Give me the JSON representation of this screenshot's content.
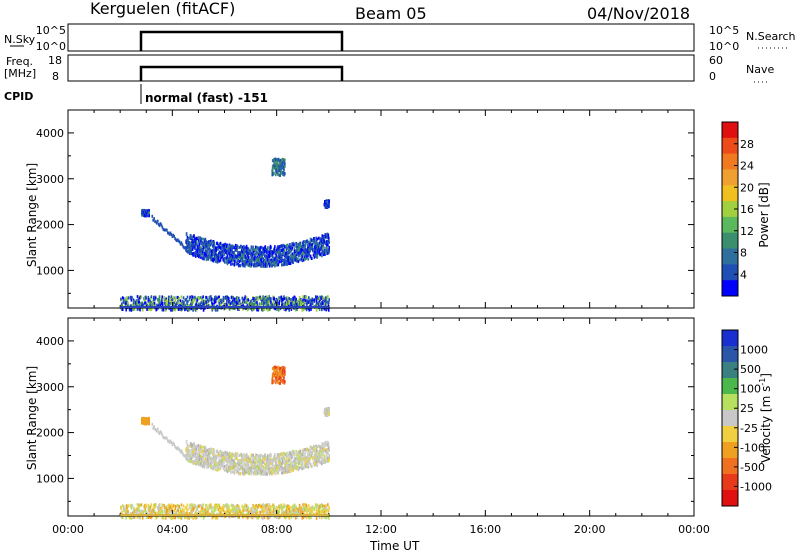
{
  "header": {
    "station": "Kerguelen (fitACF)",
    "beam": "Beam 05",
    "date": "04/Nov/2018"
  },
  "panels": {
    "nsky": {
      "left_label": "N.Sky",
      "left_ticks": [
        "10^5",
        "10^0"
      ],
      "right_ticks": [
        "10^5",
        "10^0"
      ],
      "right_label": "N.Search"
    },
    "freq": {
      "left_label_line1": "Freq.",
      "left_label_line2": "[MHz]",
      "left_ticks": [
        "18",
        "8"
      ],
      "right_ticks": [
        "60",
        "0"
      ],
      "right_label": "Nave"
    },
    "cpid": {
      "label": "CPID",
      "program": "normal (fast) -151"
    }
  },
  "chart_data": [
    {
      "type": "heatmap",
      "title": "",
      "ylabel": "Slant Range [km]",
      "xlabel": "",
      "x_unit": "hours UT",
      "xlim": [
        0,
        24
      ],
      "ylim": [
        180,
        4500
      ],
      "y_ticks": [
        "1000",
        "2000",
        "3000",
        "4000"
      ],
      "data_coverage_hours": [
        2.0,
        10.0
      ],
      "colorbar": {
        "label": "Power [dB]",
        "ticks": [
          "4",
          "8",
          "12",
          "16",
          "20",
          "24",
          "28"
        ],
        "colors": [
          "#0000ff",
          "#1f4fb4",
          "#2e6f9e",
          "#3b8f6e",
          "#5cb85c",
          "#a0d040",
          "#f0c020",
          "#f0a030",
          "#f07a20",
          "#ee4b1a",
          "#e01010"
        ]
      },
      "scatter_regions": [
        {
          "name": "ground scatter band",
          "x_range": [
            4.5,
            10.0
          ],
          "range_center_km": 1450,
          "range_spread_km": 220
        },
        {
          "name": "near range",
          "x_range": [
            2.0,
            10.0
          ],
          "range_center_km": 280,
          "range_spread_km": 150
        },
        {
          "name": "patch 08UT",
          "x_range": [
            7.8,
            8.3
          ],
          "range_center_km": 3250,
          "range_spread_km": 180
        },
        {
          "name": "patch 03UT",
          "x_range": [
            2.8,
            3.1
          ],
          "range_center_km": 2250,
          "range_spread_km": 60
        },
        {
          "name": "patch 10UT",
          "x_range": [
            9.8,
            10.0
          ],
          "range_center_km": 2450,
          "range_spread_km": 80
        }
      ]
    },
    {
      "type": "heatmap",
      "title": "",
      "ylabel": "Slant Range [km]",
      "xlabel": "Time UT",
      "x_unit": "hours UT",
      "xlim": [
        0,
        24
      ],
      "ylim": [
        180,
        4500
      ],
      "x_ticks": [
        "00:00",
        "04:00",
        "08:00",
        "12:00",
        "16:00",
        "20:00",
        "00:00"
      ],
      "y_ticks": [
        "1000",
        "2000",
        "3000",
        "4000"
      ],
      "data_coverage_hours": [
        2.0,
        10.0
      ],
      "colorbar": {
        "label": "Velocity [m s",
        "label_exponent": "-1",
        "label_close": "]",
        "ticks": [
          "1000",
          "500",
          "100",
          "25",
          "-25",
          "-100",
          "-500",
          "-1000"
        ],
        "colors": [
          "#1a2fd0",
          "#2a55a8",
          "#3a8080",
          "#4cb84c",
          "#b8e060",
          "#c8c8c8",
          "#f0d040",
          "#f0a020",
          "#ef7020",
          "#e83a1a",
          "#e01010"
        ]
      },
      "scatter_regions": [
        {
          "name": "ground scatter band",
          "x_range": [
            4.5,
            10.0
          ],
          "range_center_km": 1450,
          "range_spread_km": 220
        },
        {
          "name": "near range",
          "x_range": [
            2.0,
            10.0
          ],
          "range_center_km": 280,
          "range_spread_km": 150
        },
        {
          "name": "patch 08UT",
          "x_range": [
            7.8,
            8.3
          ],
          "range_center_km": 3250,
          "range_spread_km": 180
        },
        {
          "name": "patch 03UT",
          "x_range": [
            2.8,
            3.1
          ],
          "range_center_km": 2250,
          "range_spread_km": 60
        },
        {
          "name": "patch 10UT",
          "x_range": [
            9.8,
            10.0
          ],
          "range_center_km": 2450,
          "range_spread_km": 80
        }
      ]
    }
  ]
}
